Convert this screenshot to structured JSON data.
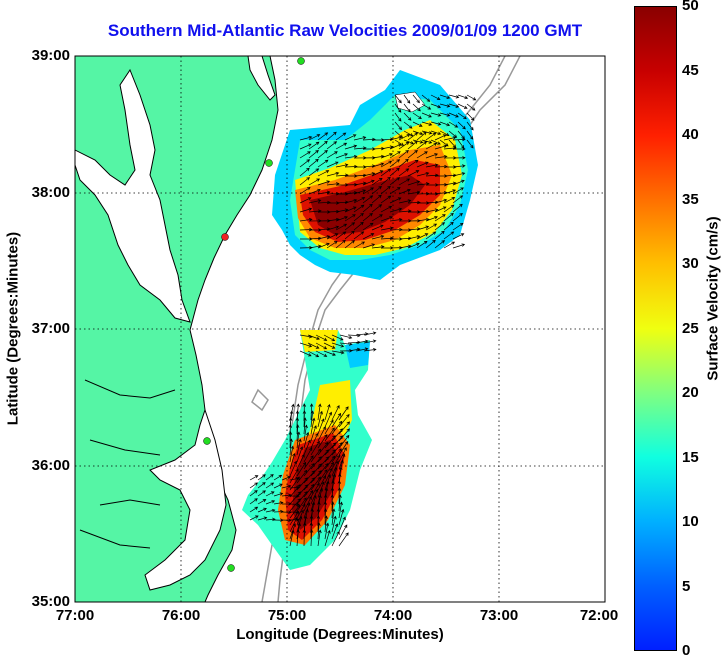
{
  "title": "Southern Mid-Atlantic Raw Velocities 2009/01/09 1200 GMT",
  "x_axis": {
    "label": "Longitude (Degrees:Minutes)",
    "ticks": [
      "77:00",
      "76:00",
      "75:00",
      "74:00",
      "73:00",
      "72:00"
    ],
    "range": [
      -77,
      -72
    ]
  },
  "y_axis": {
    "label": "Latitude (Degrees:Minutes)",
    "ticks": [
      "39:00",
      "38:00",
      "37:00",
      "36:00",
      "35:00"
    ],
    "range": [
      35,
      39
    ]
  },
  "colorbar": {
    "label": "Surface Velocity (cm/s)",
    "ticks": [
      "50",
      "45",
      "40",
      "35",
      "30",
      "25",
      "20",
      "15",
      "10",
      "5",
      "0"
    ],
    "range": [
      0,
      50
    ],
    "colormap": "jet"
  },
  "colors": {
    "land": "#55f5a5",
    "coastline": "#000000",
    "bathymetry_contour": "#999999",
    "station_marker": "#22dd22",
    "station_marker_highlight": "#ee2222",
    "title": "#1010ee"
  },
  "grid": "dotted"
}
